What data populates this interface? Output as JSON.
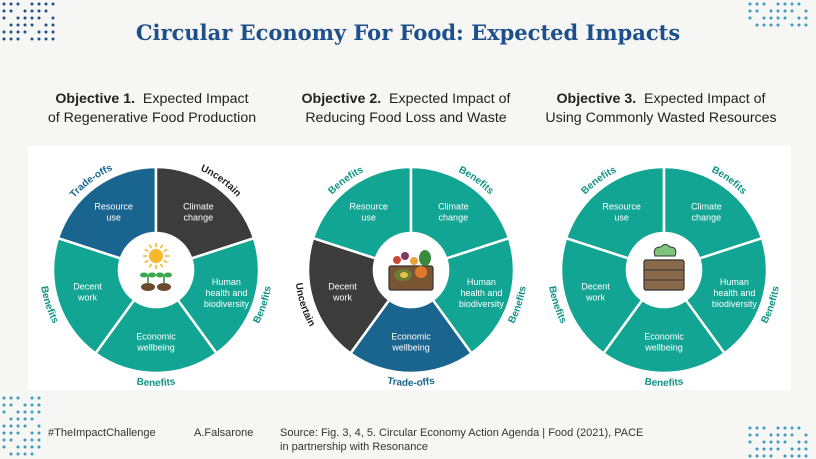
{
  "title": "Circular Economy For Food: Expected Impacts",
  "colors": {
    "title": "#1d4f8b",
    "teal": "#13a593",
    "dark_blue": "#1a6590",
    "dark_gray": "#3c3c3c",
    "label_blue": "#1a6590",
    "label_green": "#109383"
  },
  "objectives": [
    {
      "heading_bold": "Objective 1.",
      "heading_line1": "Expected Impact",
      "heading_line2": "of Regenerative Food Production",
      "center_icon": "sun-and-sprouts-icon",
      "segments": [
        {
          "label": [
            "Resource",
            "use"
          ],
          "category": "trade-off"
        },
        {
          "label": [
            "Climate",
            "change"
          ],
          "category": "uncertain"
        },
        {
          "label": [
            "Human",
            "health and",
            "biodiversity"
          ],
          "category": "benefit"
        },
        {
          "label": [
            "Economic",
            "wellbeing"
          ],
          "category": "benefit"
        },
        {
          "label": [
            "Decent",
            "work"
          ],
          "category": "benefit"
        }
      ],
      "outer_labels": {
        "top_left": "Trade-offs",
        "top_right": "Uncertain",
        "right": "Benefits",
        "bottom": "Benefits",
        "left": "Benefits"
      }
    },
    {
      "heading_bold": "Objective 2.",
      "heading_line1": "Expected Impact of",
      "heading_line2": "Reducing Food Loss and Waste",
      "center_icon": "food-crate-icon",
      "segments": [
        {
          "label": [
            "Resource",
            "use"
          ],
          "category": "benefit"
        },
        {
          "label": [
            "Climate",
            "change"
          ],
          "category": "benefit"
        },
        {
          "label": [
            "Human",
            "health and",
            "biodiversity"
          ],
          "category": "benefit"
        },
        {
          "label": [
            "Economic",
            "wellbeing"
          ],
          "category": "trade-off"
        },
        {
          "label": [
            "Decent",
            "work"
          ],
          "category": "uncertain"
        }
      ],
      "outer_labels": {
        "top_left": "Benefits",
        "top_right": "Benefits",
        "right": "Benefits",
        "bottom": "Trade-offs",
        "left": "Uncertain"
      }
    },
    {
      "heading_bold": "Objective 3.",
      "heading_line1": "Expected Impact of",
      "heading_line2": "Using Commonly Wasted Resources",
      "center_icon": "compost-bin-icon",
      "segments": [
        {
          "label": [
            "Resource",
            "use"
          ],
          "category": "benefit"
        },
        {
          "label": [
            "Climate",
            "change"
          ],
          "category": "benefit"
        },
        {
          "label": [
            "Human",
            "health and",
            "biodiversity"
          ],
          "category": "benefit"
        },
        {
          "label": [
            "Economic",
            "wellbeing"
          ],
          "category": "benefit"
        },
        {
          "label": [
            "Decent",
            "work"
          ],
          "category": "benefit"
        }
      ],
      "outer_labels": {
        "top_left": "Benefits",
        "top_right": "Benefits",
        "right": "Benefits",
        "bottom": "Benefits",
        "left": "Benefits"
      }
    }
  ],
  "footer": {
    "hashtag": "#TheImpactChallenge",
    "author": "A.Falsarone",
    "source_line1": "Source: Fig. 3, 4, 5. Circular Economy Action Agenda | Food (2021), PACE",
    "source_line2": "in partnership with Resonance"
  }
}
